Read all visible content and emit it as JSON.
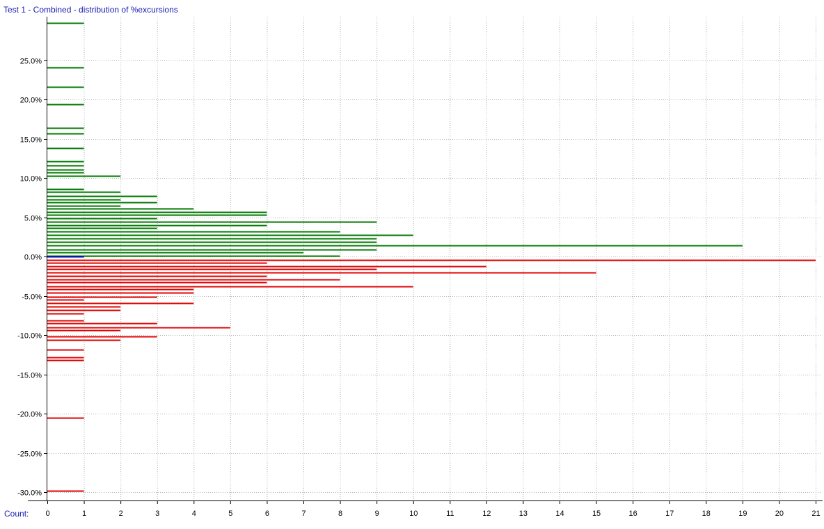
{
  "chart_title": "Test 1 - Combined - distribution of %excursions",
  "count_axis_label": "Count:",
  "chart_data": {
    "type": "bar",
    "orientation": "horizontal",
    "title": "Test 1 - Combined - distribution of %excursions",
    "xlabel": "Count:",
    "ylabel": "",
    "xlim": [
      0,
      21
    ],
    "ylim": [
      -31,
      30.3
    ],
    "grid": true,
    "x_ticks": [
      0,
      1,
      2,
      3,
      4,
      5,
      6,
      7,
      8,
      9,
      10,
      11,
      12,
      13,
      14,
      15,
      16,
      17,
      18,
      19,
      20,
      21
    ],
    "y_ticks": [
      25,
      20,
      15,
      10,
      5,
      0,
      -5,
      -10,
      -15,
      -20,
      -25,
      -30
    ],
    "y_tick_labels": [
      "25.0%",
      "20.0%",
      "15.0%",
      "10.0%",
      "5.0%",
      "0.0%",
      "-5.0%",
      "-10.0%",
      "-15.0%",
      "-20.0%",
      "-25.0%",
      "-30.0%"
    ],
    "colors": {
      "positive": "#007800",
      "negative": "#e00000",
      "zero": "#0000c8",
      "grid": "#b4b4b4",
      "label": "#1a1ab4"
    },
    "series": [
      {
        "sign": "positive",
        "points": [
          {
            "y": 29.7,
            "count": 1
          },
          {
            "y": 24.1,
            "count": 1
          },
          {
            "y": 21.6,
            "count": 1
          },
          {
            "y": 19.4,
            "count": 1
          },
          {
            "y": 16.4,
            "count": 1
          },
          {
            "y": 15.7,
            "count": 1
          },
          {
            "y": 13.8,
            "count": 1
          },
          {
            "y": 12.1,
            "count": 1
          },
          {
            "y": 11.6,
            "count": 1
          },
          {
            "y": 11.1,
            "count": 1
          },
          {
            "y": 10.7,
            "count": 1
          },
          {
            "y": 10.3,
            "count": 2
          },
          {
            "y": 8.6,
            "count": 1
          },
          {
            "y": 8.2,
            "count": 2
          },
          {
            "y": 7.7,
            "count": 3
          },
          {
            "y": 7.3,
            "count": 2
          },
          {
            "y": 6.9,
            "count": 3
          },
          {
            "y": 6.5,
            "count": 2
          },
          {
            "y": 6.1,
            "count": 4
          },
          {
            "y": 5.7,
            "count": 6
          },
          {
            "y": 5.3,
            "count": 6
          },
          {
            "y": 4.9,
            "count": 3
          },
          {
            "y": 4.4,
            "count": 9
          },
          {
            "y": 4.0,
            "count": 6
          },
          {
            "y": 3.6,
            "count": 3
          },
          {
            "y": 3.2,
            "count": 8
          },
          {
            "y": 2.7,
            "count": 10
          },
          {
            "y": 2.3,
            "count": 9
          },
          {
            "y": 1.9,
            "count": 9
          },
          {
            "y": 1.4,
            "count": 19
          },
          {
            "y": 0.9,
            "count": 9
          },
          {
            "y": 0.5,
            "count": 7
          },
          {
            "y": 0.05,
            "count": 8
          }
        ]
      },
      {
        "sign": "zero",
        "points": [
          {
            "y": 0.0,
            "count": 1
          }
        ]
      },
      {
        "sign": "negative",
        "points": [
          {
            "y": -0.4,
            "count": 21
          },
          {
            "y": -0.8,
            "count": 6
          },
          {
            "y": -1.2,
            "count": 12
          },
          {
            "y": -1.6,
            "count": 9
          },
          {
            "y": -2.0,
            "count": 15
          },
          {
            "y": -2.5,
            "count": 6
          },
          {
            "y": -2.9,
            "count": 8
          },
          {
            "y": -3.3,
            "count": 6
          },
          {
            "y": -3.8,
            "count": 10
          },
          {
            "y": -4.2,
            "count": 4
          },
          {
            "y": -4.6,
            "count": 4
          },
          {
            "y": -5.1,
            "count": 3
          },
          {
            "y": -5.5,
            "count": 1
          },
          {
            "y": -5.9,
            "count": 4
          },
          {
            "y": -6.4,
            "count": 2
          },
          {
            "y": -6.8,
            "count": 2
          },
          {
            "y": -7.3,
            "count": 1
          },
          {
            "y": -8.1,
            "count": 1
          },
          {
            "y": -8.5,
            "count": 3
          },
          {
            "y": -9.0,
            "count": 5
          },
          {
            "y": -9.4,
            "count": 2
          },
          {
            "y": -10.2,
            "count": 3
          },
          {
            "y": -10.6,
            "count": 2
          },
          {
            "y": -11.9,
            "count": 1
          },
          {
            "y": -12.8,
            "count": 1
          },
          {
            "y": -13.2,
            "count": 1
          },
          {
            "y": -20.5,
            "count": 1
          },
          {
            "y": -29.8,
            "count": 1
          }
        ]
      }
    ]
  }
}
